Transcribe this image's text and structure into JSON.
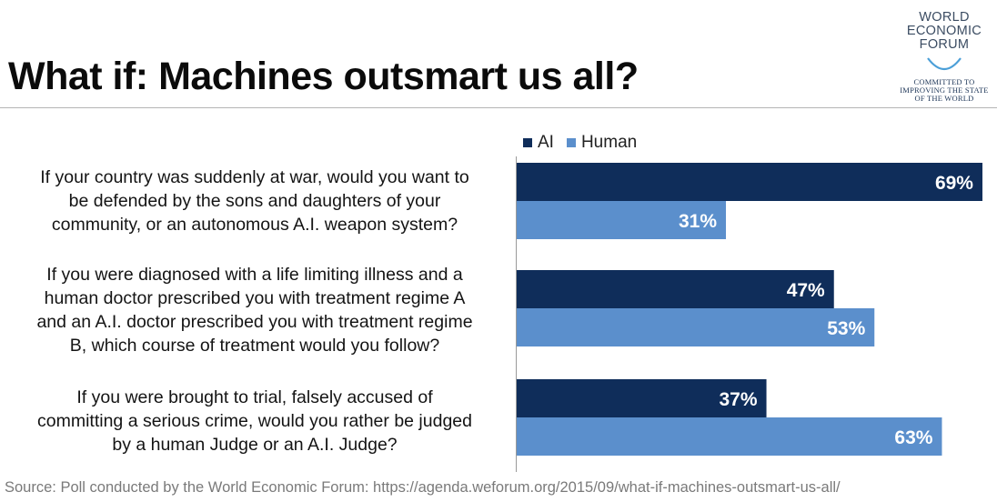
{
  "title": "What if: Machines outsmart us all?",
  "logo": {
    "lines": [
      "WORLD",
      "ECONOMIC",
      "FORUM"
    ],
    "tagline": [
      "COMMITTED TO",
      "IMPROVING THE STATE",
      "OF THE WORLD"
    ]
  },
  "source": "Source: Poll conducted by the World Economic Forum: https://agenda.weforum.org/2015/09/what-if-machines-outsmart-us-all/",
  "colors": {
    "ai": "#0f2d5a",
    "human": "#5b8fcc",
    "logo_arc": "#4b9fd8"
  },
  "chart_data": {
    "type": "bar",
    "orientation": "horizontal",
    "title": "What if: Machines outsmart us all?",
    "categories": [
      "If your country was suddenly at war, would you want to be defended by the sons and daughters of your community, or an autonomous A.I. weapon system?",
      "If you were diagnosed with a life limiting illness and a human doctor prescribed you with treatment regime A and an A.I. doctor prescribed you with treatment regime B, which course of treatment would you follow?",
      "If you were brought to trial, falsely accused of committing a serious crime, would you rather be judged by a human Judge or an A.I. Judge?"
    ],
    "category_lines": [
      [
        "If your country was suddenly at war, would you want to",
        "be defended by the sons and daughters of your",
        "community, or an autonomous A.I. weapon system?"
      ],
      [
        "If you were diagnosed with a life limiting illness and a",
        "human doctor prescribed you with treatment regime A",
        "and an A.I. doctor prescribed you with treatment regime",
        "B, which course of treatment would you follow?"
      ],
      [
        "If you were brought to trial, falsely accused of",
        "committing a serious crime, would you rather be judged",
        "by a human Judge or an A.I. Judge?"
      ]
    ],
    "series": [
      {
        "name": "AI",
        "values": [
          69,
          47,
          37
        ],
        "labels": [
          "69%",
          "47%",
          "37%"
        ]
      },
      {
        "name": "Human",
        "values": [
          31,
          53,
          63
        ],
        "labels": [
          "31%",
          "53%",
          "63%"
        ]
      }
    ],
    "xlim": [
      0,
      70
    ],
    "legend": "top",
    "grid": false,
    "data_labels": "inside-end"
  }
}
